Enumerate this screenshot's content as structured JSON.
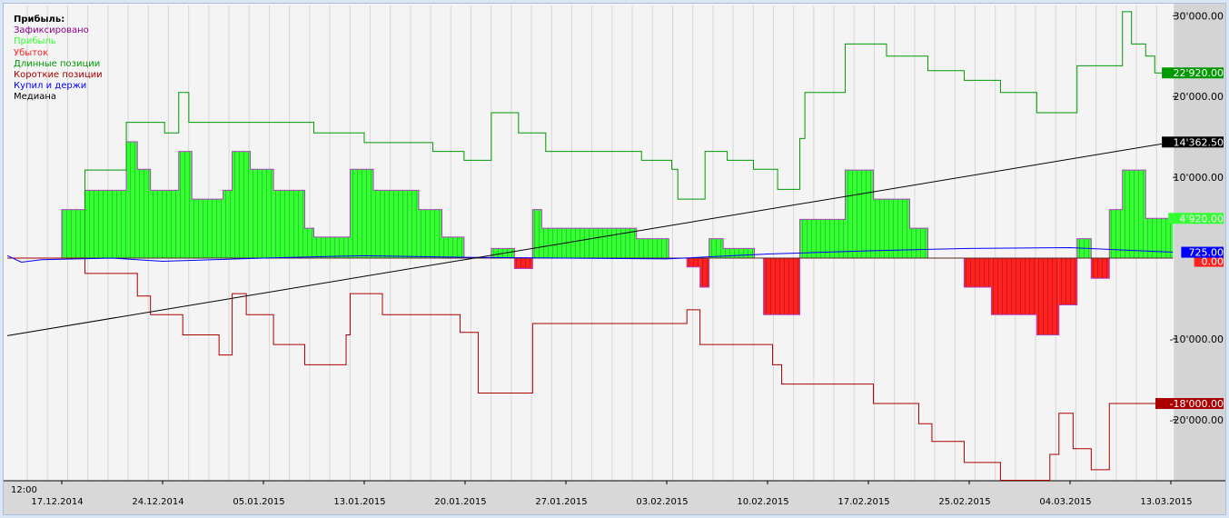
{
  "legend": {
    "title": "Прибыль:",
    "items": [
      {
        "label": "Зафиксировано",
        "color": "#8b008b"
      },
      {
        "label": "Прибыль",
        "color": "#33ff33"
      },
      {
        "label": "Убыток",
        "color": "#ff2020"
      },
      {
        "label": "Длинные позиции",
        "color": "#009900"
      },
      {
        "label": "Короткие позиции",
        "color": "#aa0000"
      },
      {
        "label": "Купил и держи",
        "color": "#0000ff"
      },
      {
        "label": "Медиана",
        "color": "#000000"
      }
    ]
  },
  "chart_data": {
    "type": "line",
    "x_unit": "date label interval index (0 = 17.12.2014)",
    "x_range": [
      -0.54,
      11.02
    ],
    "ylim": [
      -28000,
      31000
    ],
    "time_label": "12:00",
    "x_ticks": [
      "17.12.2014",
      "24.12.2014",
      "05.01.2015",
      "13.01.2015",
      "20.01.2015",
      "27.01.2015",
      "03.02.2015",
      "10.02.2015",
      "17.02.2015",
      "25.02.2015",
      "04.03.2015",
      "13.03.2015"
    ],
    "y_ticks": [
      {
        "value": 30000,
        "label": "30'000.00"
      },
      {
        "value": 20000,
        "label": "20'000.00"
      },
      {
        "value": 10000,
        "label": "10'000.00"
      },
      {
        "value": -10000,
        "label": "-10'000.00"
      },
      {
        "value": -20000,
        "label": "-20'000.00"
      }
    ],
    "badges": [
      {
        "value": 22920,
        "label": "22'920.00",
        "bg": "#009900",
        "fg": "#ffffff"
      },
      {
        "value": 14362.5,
        "label": "14'362.50",
        "bg": "#000000",
        "fg": "#ffffff"
      },
      {
        "value": 4920,
        "label": "4'920.00",
        "bg": "#33ff33",
        "fg": "#ffffff"
      },
      {
        "value": -400,
        "label": "0.00",
        "bg": "#ff2020",
        "fg": "#ffffff"
      },
      {
        "value": 725,
        "label": "725.00",
        "bg": "#0000ff",
        "fg": "#ffffff"
      },
      {
        "value": -18000,
        "label": "-18'000.00",
        "bg": "#aa0000",
        "fg": "#ffffff"
      }
    ],
    "profit_steps": [
      [
        -0.54,
        0
      ],
      [
        0,
        6000
      ],
      [
        0.23,
        8400
      ],
      [
        0.64,
        14400
      ],
      [
        0.75,
        11000
      ],
      [
        0.88,
        8400
      ],
      [
        1.16,
        13200
      ],
      [
        1.29,
        7300
      ],
      [
        1.6,
        8400
      ],
      [
        1.69,
        13200
      ],
      [
        1.87,
        11000
      ],
      [
        2.1,
        8400
      ],
      [
        2.41,
        3700
      ],
      [
        2.5,
        2600
      ],
      [
        2.86,
        11000
      ],
      [
        3.09,
        8400
      ],
      [
        3.54,
        6000
      ],
      [
        3.77,
        2600
      ],
      [
        3.99,
        0
      ],
      [
        4.26,
        1200
      ],
      [
        4.49,
        -1300
      ],
      [
        4.67,
        6000
      ],
      [
        4.76,
        3700
      ],
      [
        5.7,
        2400
      ],
      [
        6.02,
        0
      ],
      [
        6.2,
        -1100
      ],
      [
        6.33,
        -3600
      ],
      [
        6.42,
        2400
      ],
      [
        6.56,
        1200
      ],
      [
        6.87,
        0
      ],
      [
        6.96,
        -7000
      ],
      [
        7.32,
        4800
      ],
      [
        7.77,
        10900
      ],
      [
        8.05,
        7300
      ],
      [
        8.41,
        3700
      ],
      [
        8.59,
        0
      ],
      [
        8.95,
        -3600
      ],
      [
        9.22,
        -7000
      ],
      [
        9.67,
        -9500
      ],
      [
        9.89,
        -5800
      ],
      [
        10.07,
        2400
      ],
      [
        10.21,
        -2500
      ],
      [
        10.39,
        6000
      ],
      [
        10.52,
        10900
      ],
      [
        10.75,
        4920
      ],
      [
        11.02,
        4920
      ]
    ],
    "series": [
      {
        "name": "Длинные позиции",
        "color": "#009900",
        "step": true,
        "points": [
          [
            -0.54,
            0
          ],
          [
            0.23,
            10900
          ],
          [
            0.64,
            16800
          ],
          [
            1.02,
            15500
          ],
          [
            1.16,
            20500
          ],
          [
            1.26,
            16800
          ],
          [
            2.5,
            15500
          ],
          [
            3.0,
            14300
          ],
          [
            3.68,
            13200
          ],
          [
            3.99,
            12100
          ],
          [
            4.26,
            18000
          ],
          [
            4.53,
            15500
          ],
          [
            4.8,
            13200
          ],
          [
            5.75,
            12100
          ],
          [
            6.05,
            11000
          ],
          [
            6.11,
            7300
          ],
          [
            6.38,
            13200
          ],
          [
            6.6,
            12100
          ],
          [
            6.86,
            11000
          ],
          [
            7.1,
            8500
          ],
          [
            7.32,
            14800
          ],
          [
            7.37,
            20500
          ],
          [
            7.77,
            26500
          ],
          [
            8.18,
            25000
          ],
          [
            8.59,
            23200
          ],
          [
            8.95,
            22000
          ],
          [
            9.31,
            20500
          ],
          [
            9.67,
            18000
          ],
          [
            10.07,
            23800
          ],
          [
            10.52,
            30500
          ],
          [
            10.61,
            26500
          ],
          [
            10.75,
            25000
          ],
          [
            10.84,
            22920
          ],
          [
            11.02,
            22920
          ]
        ]
      },
      {
        "name": "Короткие позиции",
        "color": "#aa0000",
        "step": true,
        "points": [
          [
            -0.54,
            0
          ],
          [
            0.23,
            -1900
          ],
          [
            0.75,
            -4700
          ],
          [
            0.88,
            -7000
          ],
          [
            1.2,
            -9500
          ],
          [
            1.56,
            -12000
          ],
          [
            1.69,
            -4400
          ],
          [
            1.83,
            -7000
          ],
          [
            2.1,
            -10700
          ],
          [
            2.41,
            -13200
          ],
          [
            2.82,
            -9500
          ],
          [
            2.86,
            -4400
          ],
          [
            3.18,
            -7000
          ],
          [
            3.95,
            -9200
          ],
          [
            4.13,
            -16700
          ],
          [
            4.67,
            -8100
          ],
          [
            6.2,
            -6400
          ],
          [
            6.33,
            -10700
          ],
          [
            7.05,
            -13200
          ],
          [
            7.14,
            -15600
          ],
          [
            8.05,
            -18000
          ],
          [
            8.5,
            -20500
          ],
          [
            8.63,
            -22700
          ],
          [
            8.95,
            -25300
          ],
          [
            9.31,
            -27500
          ],
          [
            9.8,
            -24300
          ],
          [
            9.89,
            -19200
          ],
          [
            10.03,
            -23600
          ],
          [
            10.21,
            -26200
          ],
          [
            10.39,
            -18000
          ],
          [
            11.02,
            -18000
          ]
        ]
      },
      {
        "name": "Купил и держи",
        "color": "#0000ff",
        "step": false,
        "points": [
          [
            -0.54,
            300
          ],
          [
            -0.4,
            -500
          ],
          [
            -0.2,
            -200
          ],
          [
            0.5,
            0
          ],
          [
            1,
            -400
          ],
          [
            2,
            0
          ],
          [
            3,
            300
          ],
          [
            4,
            100
          ],
          [
            5,
            0
          ],
          [
            6,
            -100
          ],
          [
            7,
            500
          ],
          [
            8,
            900
          ],
          [
            9,
            1200
          ],
          [
            10,
            1300
          ],
          [
            11.02,
            725
          ]
        ]
      },
      {
        "name": "Медиана",
        "color": "#000000",
        "step": false,
        "points": [
          [
            -0.54,
            -9600
          ],
          [
            11.02,
            14362.5
          ]
        ]
      }
    ]
  }
}
